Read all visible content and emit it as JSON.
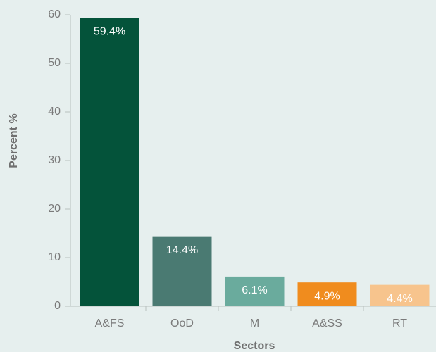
{
  "chart_data": {
    "type": "bar",
    "x_label": "Sectors",
    "y_label": "Percent %",
    "categories": [
      "A&FS",
      "OoD",
      "M",
      "A&SS",
      "RT"
    ],
    "values": [
      59.4,
      14.4,
      6.1,
      4.9,
      4.4
    ],
    "value_labels": [
      "59.4%",
      "14.4%",
      "6.1%",
      "4.9%",
      "4.4%"
    ],
    "colors": [
      "#04533a",
      "#4a7a72",
      "#6aab9d",
      "#f08c1e",
      "#f7c48d"
    ],
    "ylim": [
      0,
      60
    ],
    "yticks": [
      0,
      10,
      20,
      30,
      40,
      50,
      60
    ],
    "grid": false
  }
}
